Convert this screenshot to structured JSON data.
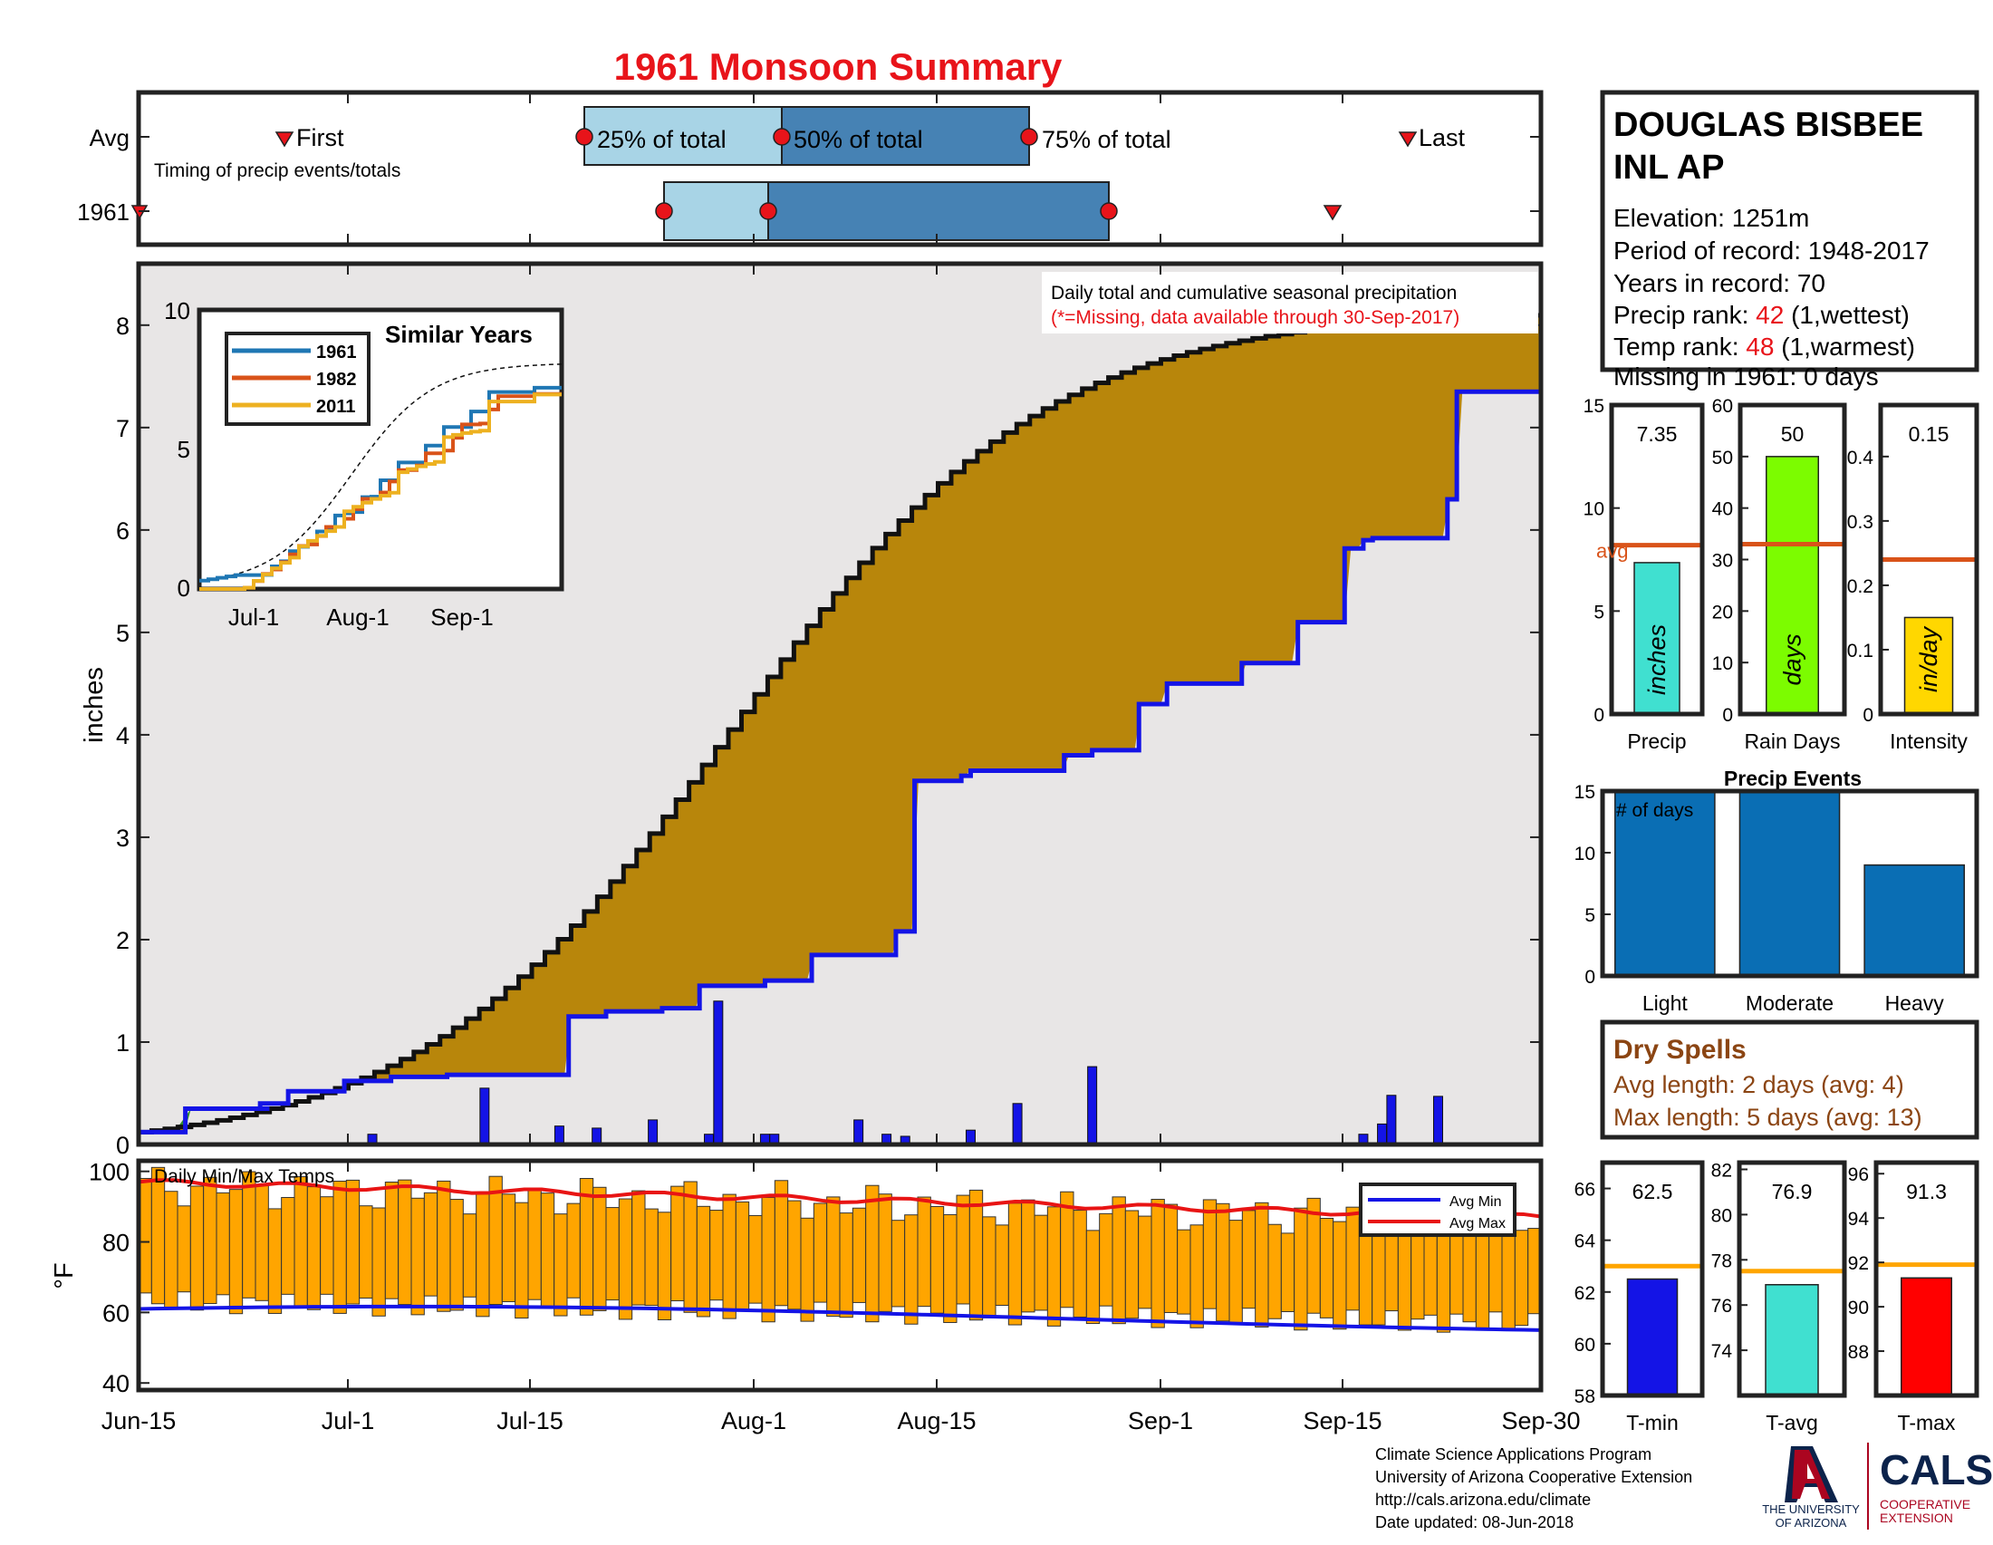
{
  "title": "1961 Monsoon Summary",
  "station": {
    "name_line1": "DOUGLAS BISBEE",
    "name_line2": "INL AP",
    "elevation": "Elevation: 1251m",
    "period": "Period of record: 1948-2017",
    "years": "Years in record: 70",
    "precip_rank_label": "Precip rank: ",
    "precip_rank": "42",
    "precip_rank_suffix": " (1,wettest)",
    "temp_rank_label": "Temp rank: ",
    "temp_rank": "48",
    "temp_rank_suffix": " (1,warmest)",
    "missing": "Missing in 1961: 0 days"
  },
  "timing": {
    "row_avg": "Avg",
    "row_year": "1961",
    "first": "First",
    "last": "Last",
    "p25": "25% of total",
    "p50": "50% of total",
    "p75": "75% of total",
    "caption": "Timing of precip events/totals"
  },
  "main_chart": {
    "title_line1": "Daily total and cumulative seasonal precipitation",
    "title_line2": "(*=Missing, data available through 30-Sep-2017)",
    "ylabel": "inches",
    "yticks": [
      "0",
      "1",
      "2",
      "3",
      "4",
      "5",
      "6",
      "7",
      "8"
    ]
  },
  "xticks": [
    "Jun-15",
    "Jul-1",
    "Jul-15",
    "Aug-1",
    "Aug-15",
    "Sep-1",
    "Sep-15",
    "Sep-30"
  ],
  "inset": {
    "title": "Similar Years",
    "yticks": [
      "0",
      "5",
      "10"
    ],
    "xticks": [
      "Jul-1",
      "Aug-1",
      "Sep-1"
    ],
    "legend": [
      "1961",
      "1982",
      "2011"
    ]
  },
  "temp_chart": {
    "title": "Daily Min/Max Temps",
    "ylabel": "°F",
    "yticks": [
      "40",
      "60",
      "80",
      "100"
    ],
    "legend": [
      "Avg Min",
      "Avg Max"
    ]
  },
  "bars": {
    "precip": {
      "value": "7.35",
      "label": "Precip",
      "unit": "inches",
      "yticks": [
        "0",
        "5",
        "10",
        "15"
      ],
      "avg_label": "avg"
    },
    "raindays": {
      "value": "50",
      "label": "Rain Days",
      "unit": "days",
      "yticks": [
        "0",
        "10",
        "20",
        "30",
        "40",
        "50",
        "60"
      ]
    },
    "intensity": {
      "value": "0.15",
      "label": "Intensity",
      "unit": "in/day",
      "yticks": [
        "0",
        "0.1",
        "0.2",
        "0.3",
        "0.4"
      ]
    }
  },
  "events": {
    "title": "Precip Events",
    "annotation": "# of days",
    "labels": [
      "Light",
      "Moderate",
      "Heavy"
    ],
    "yticks": [
      "0",
      "5",
      "10",
      "15"
    ]
  },
  "dry_spells": {
    "title": "Dry Spells",
    "avg": "Avg length: 2 days (avg: 4)",
    "max": "Max length: 5 days (avg: 13)"
  },
  "temp_bars": {
    "tmin": {
      "value": "62.5",
      "label": "T-min",
      "yticks": [
        "58",
        "60",
        "62",
        "64",
        "66"
      ]
    },
    "tavg": {
      "value": "76.9",
      "label": "T-avg",
      "yticks": [
        "74",
        "76",
        "78",
        "80",
        "82"
      ]
    },
    "tmax": {
      "value": "91.3",
      "label": "T-max",
      "yticks": [
        "88",
        "90",
        "92",
        "94",
        "96"
      ]
    }
  },
  "footer": {
    "line1": "Climate Science Applications Program",
    "line2": "University of Arizona Cooperative Extension",
    "line3": "http://cals.arizona.edu/climate",
    "line4": " Date updated: 08-Jun-2018",
    "ua_logo_line1": "THE UNIVERSITY",
    "ua_logo_line2": "OF ARIZONA",
    "cals": "CALS",
    "cals_sub1": "COOPERATIVE",
    "cals_sub2": "EXTENSION"
  },
  "colors": {
    "title_red": "#e8141a",
    "observed_fill": "#b8860b",
    "early_fill": "#2e8b2e",
    "avg_line": "#1414e6",
    "temp_bar": "#ffa500",
    "avg_min": "#1414e6",
    "avg_max": "#e81414",
    "dry_text": "#8b4513"
  },
  "chart_data": [
    {
      "type": "timing",
      "avg": {
        "first": "Jun-25",
        "p25": "Jul-19",
        "p50": "Aug-2",
        "p75": "Aug-20",
        "last": "Sep-23"
      },
      "year_1961": {
        "first": "Jun-15",
        "p25": "Jul-25",
        "p50": "Aug-1",
        "p75": "Aug-25",
        "last": "Sep-18"
      }
    },
    {
      "type": "line",
      "title": "Daily total and cumulative seasonal precipitation",
      "ylabel": "inches",
      "ylim": [
        0,
        8.6
      ],
      "x_range": [
        "Jun-15",
        "Sep-30"
      ],
      "cumulative_1961": {
        "x_day": [
          0,
          5,
          14,
          13,
          16,
          22,
          27,
          33,
          40,
          46,
          50,
          56,
          60,
          67,
          72,
          81,
          83,
          88,
          89,
          99,
          102,
          107,
          110,
          118,
          124,
          129,
          131,
          132,
          140,
          141,
          150
        ],
        "y": [
          0.12,
          0.35,
          0.35,
          0.4,
          0.52,
          0.62,
          0.66,
          0.68,
          0.68,
          1.25,
          1.3,
          1.33,
          1.55,
          1.6,
          1.85,
          2.08,
          3.55,
          3.6,
          3.65,
          3.8,
          3.85,
          4.3,
          4.5,
          4.7,
          5.1,
          5.82,
          5.9,
          5.92,
          6.3,
          7.35,
          7.35
        ]
      },
      "average_cumulative_end": 8.1,
      "daily_bars": [
        {
          "day": 25,
          "v": 0.1
        },
        {
          "day": 37,
          "v": 0.55
        },
        {
          "day": 45,
          "v": 0.18
        },
        {
          "day": 49,
          "v": 0.16
        },
        {
          "day": 55,
          "v": 0.24
        },
        {
          "day": 61,
          "v": 0.1
        },
        {
          "day": 62,
          "v": 1.4
        },
        {
          "day": 67,
          "v": 0.1
        },
        {
          "day": 68,
          "v": 0.1
        },
        {
          "day": 77,
          "v": 0.24
        },
        {
          "day": 80,
          "v": 0.1
        },
        {
          "day": 82,
          "v": 0.08
        },
        {
          "day": 89,
          "v": 0.14
        },
        {
          "day": 94,
          "v": 0.4
        },
        {
          "day": 102,
          "v": 0.76
        },
        {
          "day": 131,
          "v": 0.1
        },
        {
          "day": 133,
          "v": 0.2
        },
        {
          "day": 134,
          "v": 0.48
        },
        {
          "day": 139,
          "v": 0.47
        }
      ]
    },
    {
      "type": "line",
      "title": "Similar Years",
      "series": [
        {
          "name": "1961",
          "final": 7.4
        },
        {
          "name": "1982",
          "final": 7.0
        },
        {
          "name": "2011",
          "final": 7.0
        }
      ],
      "ylim": [
        0,
        10
      ]
    },
    {
      "type": "bar",
      "title": "Daily Min/Max Temps",
      "ylim": [
        38,
        103
      ],
      "avg_max_start": 97,
      "avg_max_end": 87,
      "avg_min_start": 61,
      "avg_min_end": 55
    },
    {
      "type": "bar",
      "categories": [
        "Precip"
      ],
      "values": [
        7.35
      ],
      "avg": 8.2,
      "ylim": [
        0,
        15
      ]
    },
    {
      "type": "bar",
      "categories": [
        "Rain Days"
      ],
      "values": [
        50
      ],
      "avg": 33,
      "ylim": [
        0,
        60
      ]
    },
    {
      "type": "bar",
      "categories": [
        "Intensity"
      ],
      "values": [
        0.15
      ],
      "avg": 0.24,
      "ylim": [
        0,
        0.48
      ]
    },
    {
      "type": "bar",
      "title": "Precip Events",
      "categories": [
        "Light",
        "Moderate",
        "Heavy"
      ],
      "values": [
        15,
        15,
        9
      ],
      "ylim": [
        0,
        15
      ]
    },
    {
      "type": "bar",
      "categories": [
        "T-min"
      ],
      "values": [
        62.5
      ],
      "avg": 63,
      "ylim": [
        58,
        67
      ]
    },
    {
      "type": "bar",
      "categories": [
        "T-avg"
      ],
      "values": [
        76.9
      ],
      "avg": 77.5,
      "ylim": [
        72,
        82
      ]
    },
    {
      "type": "bar",
      "categories": [
        "T-max"
      ],
      "values": [
        91.3
      ],
      "avg": 91.9,
      "ylim": [
        86,
        96
      ]
    }
  ]
}
